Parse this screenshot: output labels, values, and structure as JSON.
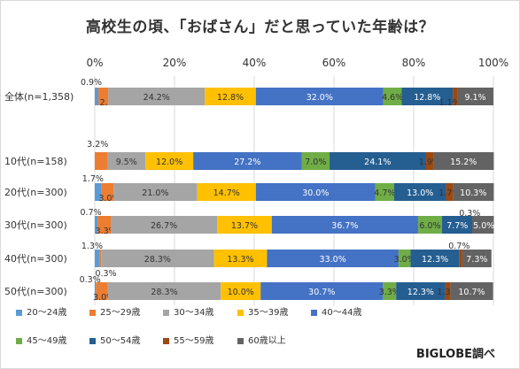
{
  "chart_data": {
    "type": "bar",
    "orientation": "horizontal",
    "stacked": true,
    "title": "高校生の頃、「おばさん」だと思っていた年齢は？",
    "xlim": [
      0,
      100
    ],
    "x_ticks": [
      "0%",
      "20%",
      "40%",
      "60%",
      "80%",
      "100%"
    ],
    "categories": [
      "全体(n=1,358)",
      "10代(n=158)",
      "20代(n=300)",
      "30代(n=300)",
      "40代(n=300)",
      "50代(n=300)"
    ],
    "series": [
      {
        "name": "20～24歳",
        "color": "#5b9bd5",
        "values": [
          0.9,
          0.0,
          1.7,
          0.7,
          1.3,
          0.3
        ],
        "labels": [
          "0.9%",
          "",
          "1.7%",
          "0.7%",
          "1.3%",
          "0.3%"
        ]
      },
      {
        "name": "25～29歳",
        "color": "#ed7d31",
        "values": [
          2.5,
          3.2,
          3.0,
          3.3,
          0.3,
          3.0
        ],
        "labels": [
          "2.5%",
          "3.2%",
          "3.0%",
          "3.3%",
          "0.3%",
          "3.0%"
        ]
      },
      {
        "name": "30～34歳",
        "color": "#a5a5a5",
        "values": [
          24.2,
          9.5,
          21.0,
          26.7,
          28.3,
          28.3
        ],
        "labels": [
          "24.2%",
          "9.5%",
          "21.0%",
          "26.7%",
          "28.3%",
          "28.3%"
        ]
      },
      {
        "name": "35～39歳",
        "color": "#ffc000",
        "values": [
          12.8,
          12.0,
          14.7,
          13.7,
          13.3,
          10.0
        ],
        "labels": [
          "12.8%",
          "12.0%",
          "14.7%",
          "13.7%",
          "13.3%",
          "10.0%"
        ]
      },
      {
        "name": "40～44歳",
        "color": "#4472c4",
        "values": [
          32.0,
          27.2,
          30.0,
          36.7,
          33.0,
          30.7
        ],
        "labels": [
          "32.0%",
          "27.2%",
          "30.0%",
          "36.7%",
          "33.0%",
          "30.7%"
        ]
      },
      {
        "name": "45～49歳",
        "color": "#70ad47",
        "values": [
          4.6,
          7.0,
          4.7,
          6.0,
          3.0,
          3.3
        ],
        "labels": [
          "4.6%",
          "7.0%",
          "4.7%",
          "6.0%",
          "3.0%",
          "3.3%"
        ]
      },
      {
        "name": "50～54歳",
        "color": "#255e91",
        "values": [
          12.8,
          24.1,
          13.0,
          7.7,
          12.3,
          12.3
        ],
        "labels": [
          "12.8%",
          "24.1%",
          "13.0%",
          "7.7%",
          "12.3%",
          "12.3%"
        ]
      },
      {
        "name": "55～59歳",
        "color": "#9e480e",
        "values": [
          1.1,
          1.9,
          1.7,
          0.3,
          0.7,
          1.3
        ],
        "labels": [
          "1.1%",
          "1.9%",
          "1.7%",
          "0.3%",
          "0.7%",
          "1.3%"
        ]
      },
      {
        "name": "60歳以上",
        "color": "#636363",
        "values": [
          9.1,
          15.2,
          10.3,
          5.0,
          7.3,
          10.7
        ],
        "labels": [
          "9.1%",
          "15.2%",
          "10.3%",
          "5.0%",
          "7.3%",
          "10.7%"
        ]
      }
    ],
    "grid": true,
    "legend_position": "bottom"
  },
  "source": "BIGLOBE調べ"
}
